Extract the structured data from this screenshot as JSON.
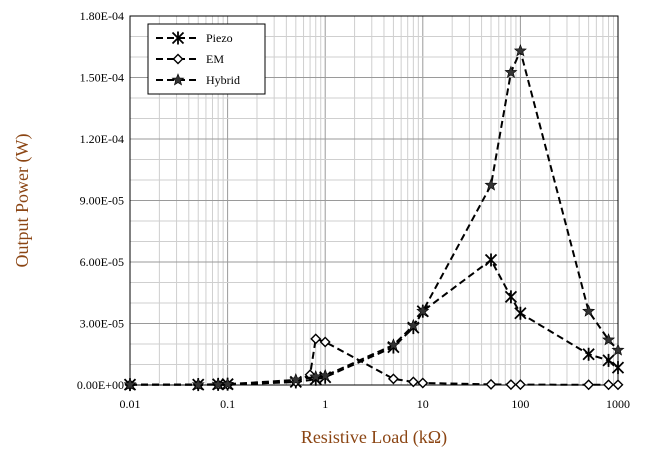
{
  "chart_data": {
    "type": "line",
    "xlabel": "Resistive Load (kΩ)",
    "ylabel": "Output Power (W)",
    "x_scale": "log",
    "xlim": [
      0.01,
      1000
    ],
    "ylim": [
      0,
      0.00018
    ],
    "x_ticks": [
      "0.01",
      "0.1",
      "1",
      "10",
      "100",
      "1000"
    ],
    "y_ticks": [
      "0.00E+00",
      "3.00E-05",
      "6.00E-05",
      "9.00E-05",
      "1.20E-04",
      "1.50E-04",
      "1.80E-04"
    ],
    "grid": true,
    "legend_position": "top-left",
    "series": [
      {
        "name": "Piezo",
        "marker": "asterisk",
        "points": [
          [
            0.01,
            2e-07
          ],
          [
            0.05,
            2e-07
          ],
          [
            0.08,
            3e-07
          ],
          [
            0.1,
            4e-07
          ],
          [
            0.5,
            1.5e-06
          ],
          [
            0.8,
            2.8e-06
          ],
          [
            1,
            3.8e-06
          ],
          [
            5,
            1.85e-05
          ],
          [
            8,
            2.8e-05
          ],
          [
            10,
            3.6e-05
          ],
          [
            50,
            6.1e-05
          ],
          [
            80,
            4.3e-05
          ],
          [
            100,
            3.5e-05
          ],
          [
            500,
            1.5e-05
          ],
          [
            800,
            1.2e-05
          ],
          [
            1000,
            8.5e-06
          ]
        ]
      },
      {
        "name": "EM",
        "marker": "diamond",
        "points": [
          [
            0.01,
            1e-07
          ],
          [
            0.05,
            1e-07
          ],
          [
            0.08,
            1e-07
          ],
          [
            0.1,
            1e-07
          ],
          [
            0.5,
            1.5e-06
          ],
          [
            0.7,
            5e-06
          ],
          [
            0.8,
            2.25e-05
          ],
          [
            1,
            2.1e-05
          ],
          [
            5,
            3e-06
          ],
          [
            8,
            1.5e-06
          ],
          [
            10,
            1e-06
          ],
          [
            50,
            3e-07
          ],
          [
            80,
            2e-07
          ],
          [
            100,
            2e-07
          ],
          [
            500,
            1e-07
          ],
          [
            800,
            1e-07
          ],
          [
            1000,
            1e-07
          ]
        ]
      },
      {
        "name": "Hybrid",
        "marker": "star",
        "points": [
          [
            0.01,
            2e-07
          ],
          [
            0.05,
            2e-07
          ],
          [
            0.08,
            3e-07
          ],
          [
            0.1,
            4e-07
          ],
          [
            0.5,
            2.5e-06
          ],
          [
            0.8,
            4e-06
          ],
          [
            1,
            4.5e-06
          ],
          [
            5,
            1.95e-05
          ],
          [
            8,
            2.9e-05
          ],
          [
            10,
            3.6e-05
          ],
          [
            50,
            9.75e-05
          ],
          [
            80,
            0.0001525
          ],
          [
            100,
            0.000163
          ],
          [
            500,
            3.6e-05
          ],
          [
            800,
            2.2e-05
          ],
          [
            1000,
            1.7e-05
          ]
        ]
      }
    ]
  }
}
